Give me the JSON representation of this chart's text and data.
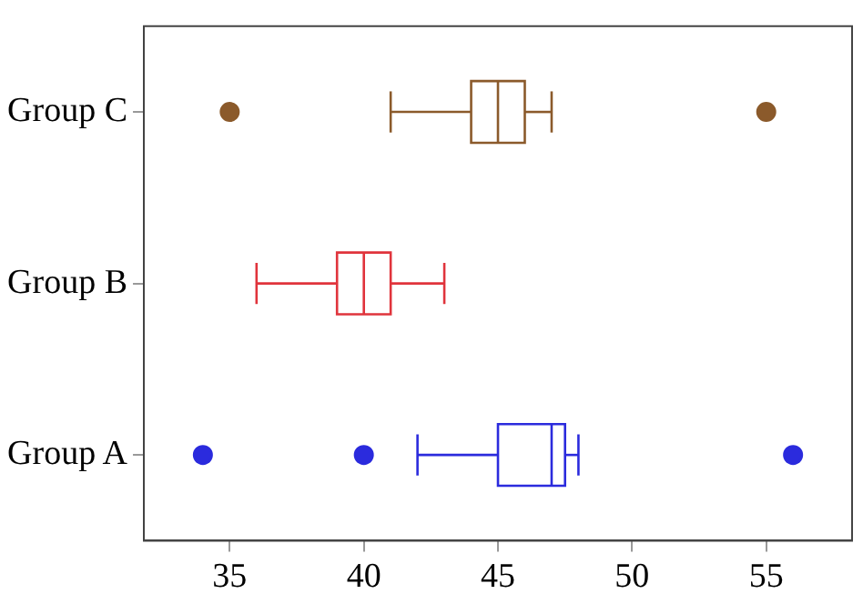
{
  "chart_data": {
    "type": "box",
    "orientation": "horizontal",
    "categories": [
      "Group C",
      "Group B",
      "Group A"
    ],
    "boxes": [
      {
        "low": 41,
        "q1": 44,
        "median": 45,
        "q3": 46,
        "high": 47,
        "outliers": [
          35,
          55
        ]
      },
      {
        "low": 36,
        "q1": 39,
        "median": 40,
        "q3": 41,
        "high": 43
      },
      {
        "low": 42,
        "q1": 45,
        "median": 47,
        "q3": 47.5,
        "high": 48,
        "outliers": [
          34,
          40,
          56
        ]
      }
    ],
    "colors": [
      "#8b5a2b",
      "#e0343c",
      "#2b2bdd"
    ],
    "xlim": [
      31.8,
      58.2
    ],
    "xticks": [
      35,
      40,
      45,
      50,
      55
    ],
    "grid": false,
    "legend": false,
    "marker": "circle"
  }
}
